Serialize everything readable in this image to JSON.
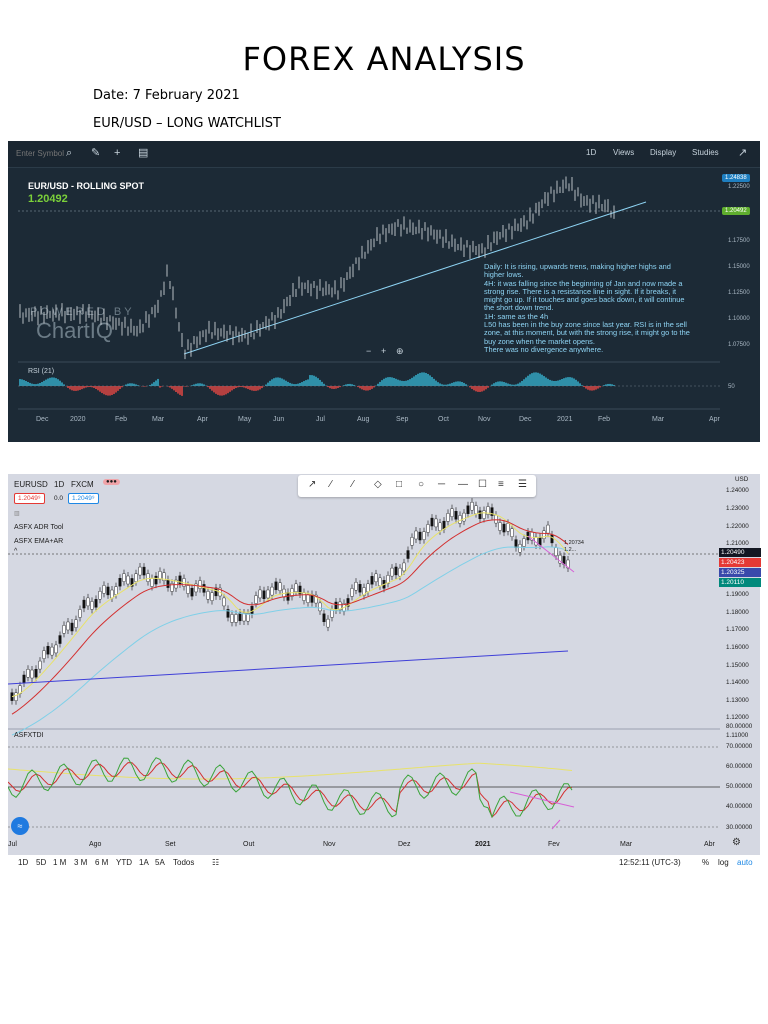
{
  "document": {
    "title": "FOREX ANALYSIS",
    "date_line": "Date: 7 February 2021",
    "watchlist_line": "EUR/USD – LONG WATCHLIST"
  },
  "chart1": {
    "toolbar": {
      "symbol_placeholder": "Enter Symbol",
      "period": "1D",
      "views": "Views",
      "display": "Display",
      "studies": "Studies"
    },
    "symbol_label": "EUR/USD - ROLLING SPOT",
    "last_price": "1.20492",
    "watermark_top": "POWERED BY",
    "watermark_brand": "ChartIQ",
    "notes": [
      "Daily: It is rising, upwards trens, making higher highs and higher lows.",
      "4H: it was falling since the beginning of Jan and now made a strong rise. There is a resistance line in sight. If it breaks, it might go up. If it touches and goes back down, it will continue the short down trend.",
      "1H: same as the 4h",
      "L50 has been in the buy zone since last year. RSI is in the sell zone, at this moment, but with the strong rise, it might go to the buy zone when the market opens.",
      "There was no divergence anywhere."
    ],
    "zoom_controls": [
      "−",
      "+",
      "⊕"
    ],
    "price_ticks": [
      "1.22500",
      "1.20000",
      "1.17500",
      "1.15000",
      "1.12500",
      "1.10000",
      "1.07500"
    ],
    "price_tag_high": "1.24838",
    "price_tag_last": "1.20492",
    "time_ticks": [
      "Dec",
      "2020",
      "Feb",
      "Mar",
      "Apr",
      "May",
      "Jun",
      "Jul",
      "Aug",
      "Sep",
      "Oct",
      "Nov",
      "Dec",
      "2021",
      "Feb",
      "Mar",
      "Apr"
    ],
    "rsi_label": "RSI (21)",
    "rsi_level": "50",
    "colors": {
      "background": "#1c2a36",
      "candles": "#c9cfd4",
      "trendline": "#8ed4f4",
      "rsi_fill": "#2f8fa8",
      "rsi_fill_low": "#b44040"
    }
  },
  "chart2": {
    "header": {
      "symbol": "EURUSD",
      "interval": "1D",
      "source": "FXCM",
      "bid": "1.2049⁹",
      "spread": "0.0",
      "ask": "1.2049⁹",
      "study_1": "ASFX ADR Tool",
      "study_2": "ASFX EMA+AR",
      "oscillator": "ASFXTDI"
    },
    "drawing_tools": [
      "cursor-tool",
      "trend-line-tool",
      "ray-tool",
      "line-tool",
      "ellipse-tool",
      "rectangle-tool",
      "horizontal-ray-tool",
      "horizontal-line-tool",
      "comment-tool",
      "fib-tool",
      "pattern-tool"
    ],
    "currency_label": "USD",
    "price_ticks": [
      "1.24000",
      "1.23000",
      "1.22000",
      "1.21000",
      "1.19000",
      "1.18000",
      "1.17000",
      "1.16000",
      "1.15000",
      "1.14000",
      "1.13000",
      "1.12000",
      "1.11000"
    ],
    "price_tags": [
      {
        "value": "1.20490",
        "color": "#131722"
      },
      {
        "value": "1.20423",
        "color": "#e53935"
      },
      {
        "value": "1.20325",
        "color": "#3949ab"
      },
      {
        "value": "1.20110",
        "color": "#00897b"
      }
    ],
    "chart_annotations": [
      "1.20734",
      "1.2..."
    ],
    "oscillator_ticks": [
      "80.00000",
      "70.00000",
      "60.00000",
      "50.00000",
      "40.00000",
      "30.00000"
    ],
    "time_ticks": [
      "Jul",
      "Ago",
      "Set",
      "Out",
      "Nov",
      "Dez",
      "2021",
      "Fev",
      "Mar",
      "Abr"
    ],
    "ranges": [
      "1D",
      "5D",
      "1 M",
      "3 M",
      "6 M",
      "YTD",
      "1A",
      "5A",
      "Todos"
    ],
    "clock": "12:52:11 (UTC-3)",
    "scale_options": [
      "%",
      "log",
      "auto"
    ],
    "colors": {
      "background": "#d5d8e2",
      "ema_fast": "#e8e26a",
      "ema_slow": "#d32f2f",
      "ema_mid": "#80d0e8",
      "ema_long": "#3f3fd8",
      "tdi_green": "#3aa43a",
      "tdi_red": "#d32f2f",
      "tdi_yellow": "#e8e26a",
      "divergence": "#d65fd6"
    }
  }
}
